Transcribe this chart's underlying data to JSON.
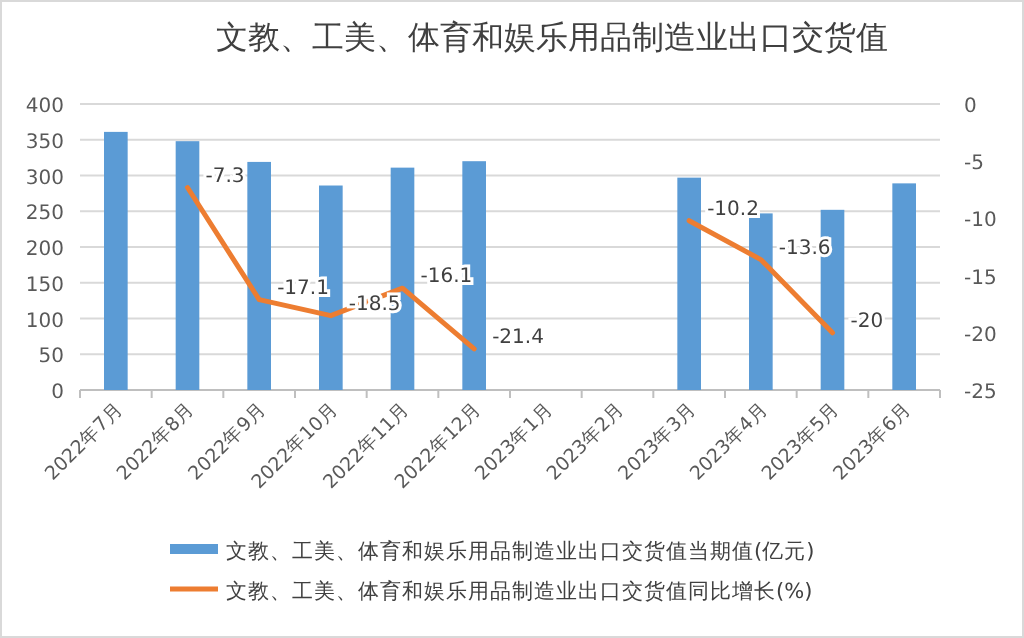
{
  "chart_data": {
    "type": "bar",
    "title": "文教、工美、体育和娱乐用品制造业出口交货值",
    "categories": [
      "2022年7月",
      "2022年8月",
      "2022年9月",
      "2022年10月",
      "2022年11月",
      "2022年12月",
      "2023年1月",
      "2023年2月",
      "2023年3月",
      "2023年4月",
      "2023年5月",
      "2023年6月"
    ],
    "series": [
      {
        "name": "文教、工美、体育和娱乐用品制造业出口交货值当期值(亿元)",
        "color": "#5b9bd5",
        "values": [
          361,
          348,
          319,
          286,
          311,
          320,
          null,
          null,
          297,
          247,
          252,
          289
        ]
      },
      {
        "name": "文教、工美、体育和娱乐用品制造业出口交货值同比增长(%)",
        "type": "line",
        "axis": "y2",
        "color": "#ed7d31",
        "data_labels": true,
        "values": [
          null,
          -7.3,
          -17.1,
          -18.5,
          -16.1,
          -21.4,
          null,
          null,
          -10.2,
          -13.6,
          -20,
          null
        ]
      }
    ],
    "ylim": [
      0,
      400
    ],
    "yticks": [
      0,
      50,
      100,
      150,
      200,
      250,
      300,
      350,
      400
    ],
    "y2lim": [
      -25,
      0
    ],
    "y2ticks": [
      -25,
      -20,
      -15,
      -10,
      -5,
      0
    ],
    "grid": "y",
    "legend": "bottom"
  }
}
